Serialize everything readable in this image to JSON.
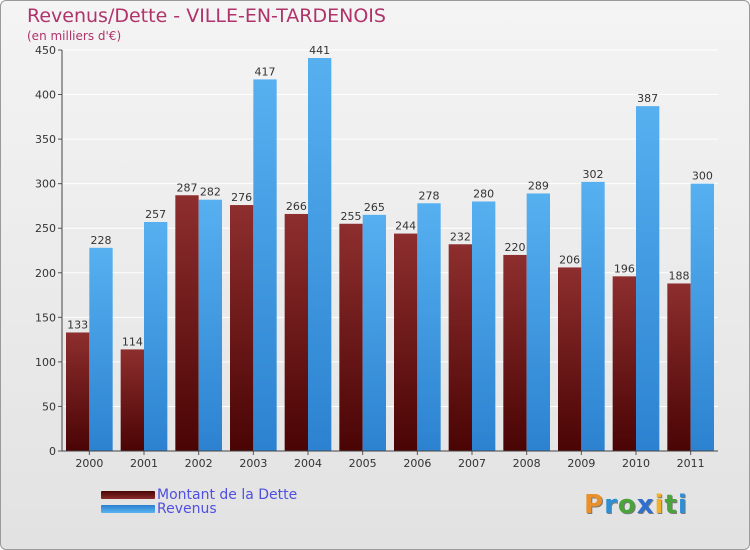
{
  "header": {
    "title": "Revenus/Dette - VILLE-EN-TARDENOIS",
    "subtitle": "(en milliers d'€)"
  },
  "logo": {
    "letters": [
      "P",
      "r",
      "o",
      "x",
      "i",
      "t",
      "i"
    ],
    "colors": [
      "#e8912c",
      "#2f8fd6",
      "#4aa33b",
      "#2f6fd0",
      "#f0b12a",
      "#4aa33b",
      "#2f8fd6"
    ]
  },
  "legend": {
    "items": [
      {
        "label": "Montant de la Dette",
        "color": "#7a1c1c"
      },
      {
        "label": "Revenus",
        "color": "#3d9ee8"
      }
    ]
  },
  "chart_data": {
    "type": "bar",
    "title": "Revenus/Dette - VILLE-EN-TARDENOIS",
    "subtitle": "(en milliers d'€)",
    "categories": [
      "2000",
      "2001",
      "2002",
      "2003",
      "2004",
      "2005",
      "2006",
      "2007",
      "2008",
      "2009",
      "2010",
      "2011"
    ],
    "series": [
      {
        "name": "Montant de la Dette",
        "color": "#7a1c1c",
        "values": [
          133,
          114,
          287,
          276,
          266,
          255,
          244,
          232,
          220,
          206,
          196,
          188
        ]
      },
      {
        "name": "Revenus",
        "color": "#3d9ee8",
        "values": [
          228,
          257,
          282,
          417,
          441,
          265,
          278,
          280,
          289,
          302,
          387,
          300
        ]
      }
    ],
    "ylim": [
      0,
      450
    ],
    "yticks": [
      0,
      50,
      100,
      150,
      200,
      250,
      300,
      350,
      400,
      450
    ],
    "grid": true,
    "legend_position": "bottom-left"
  }
}
